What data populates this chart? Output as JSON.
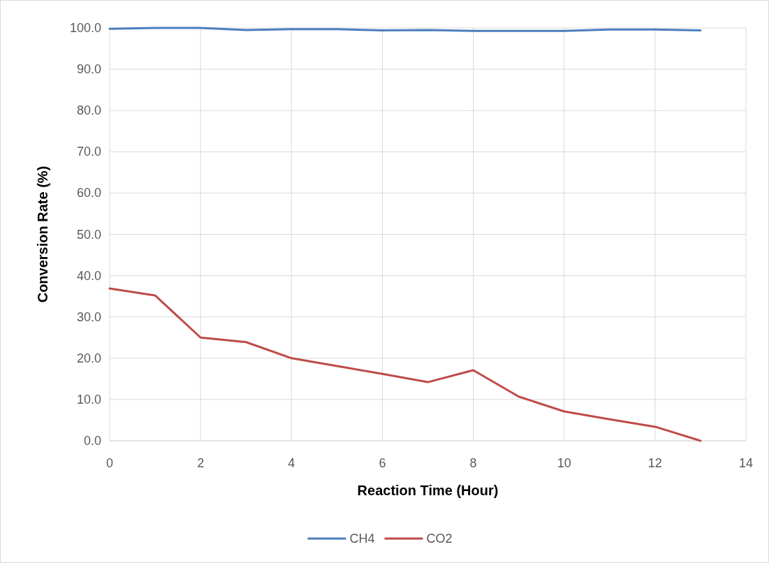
{
  "chart_data": {
    "type": "line",
    "xlabel": "Reaction Time (Hour)",
    "ylabel": "Conversion Rate (%)",
    "x": [
      0,
      1,
      2,
      3,
      4,
      5,
      6,
      7,
      8,
      9,
      10,
      11,
      12,
      13
    ],
    "series": [
      {
        "name": "CH4",
        "color": "#4a7ebb",
        "values": [
          99.8,
          100,
          100,
          99.5,
          99.7,
          99.7,
          99.4,
          99.5,
          99.3,
          99.3,
          99.3,
          99.6,
          99.6,
          99.4
        ]
      },
      {
        "name": "CO2",
        "color": "#be4b48",
        "values": [
          36.9,
          35.2,
          25.0,
          23.9,
          20.0,
          18.1,
          16.2,
          14.2,
          17.1,
          10.7,
          7.1,
          5.2,
          3.4,
          0
        ]
      }
    ],
    "xlim": [
      0,
      14
    ],
    "xticks": [
      0,
      2,
      4,
      6,
      8,
      10,
      12,
      14
    ],
    "ylim": [
      0,
      100
    ],
    "yticks": [
      {
        "value": 0,
        "label": "0.0"
      },
      {
        "value": 10,
        "label": "10.0"
      },
      {
        "value": 20,
        "label": "20.0"
      },
      {
        "value": 30,
        "label": "30.0"
      },
      {
        "value": 40,
        "label": "40.0"
      },
      {
        "value": 50,
        "label": "50.0"
      },
      {
        "value": 60,
        "label": "60.0"
      },
      {
        "value": 70,
        "label": "70.0"
      },
      {
        "value": 80,
        "label": "80.0"
      },
      {
        "value": 90,
        "label": "90.0"
      },
      {
        "value": 100,
        "label": "100.0"
      }
    ],
    "grid": true,
    "legend": "bottom",
    "marker": "none",
    "line_style": "solid"
  }
}
